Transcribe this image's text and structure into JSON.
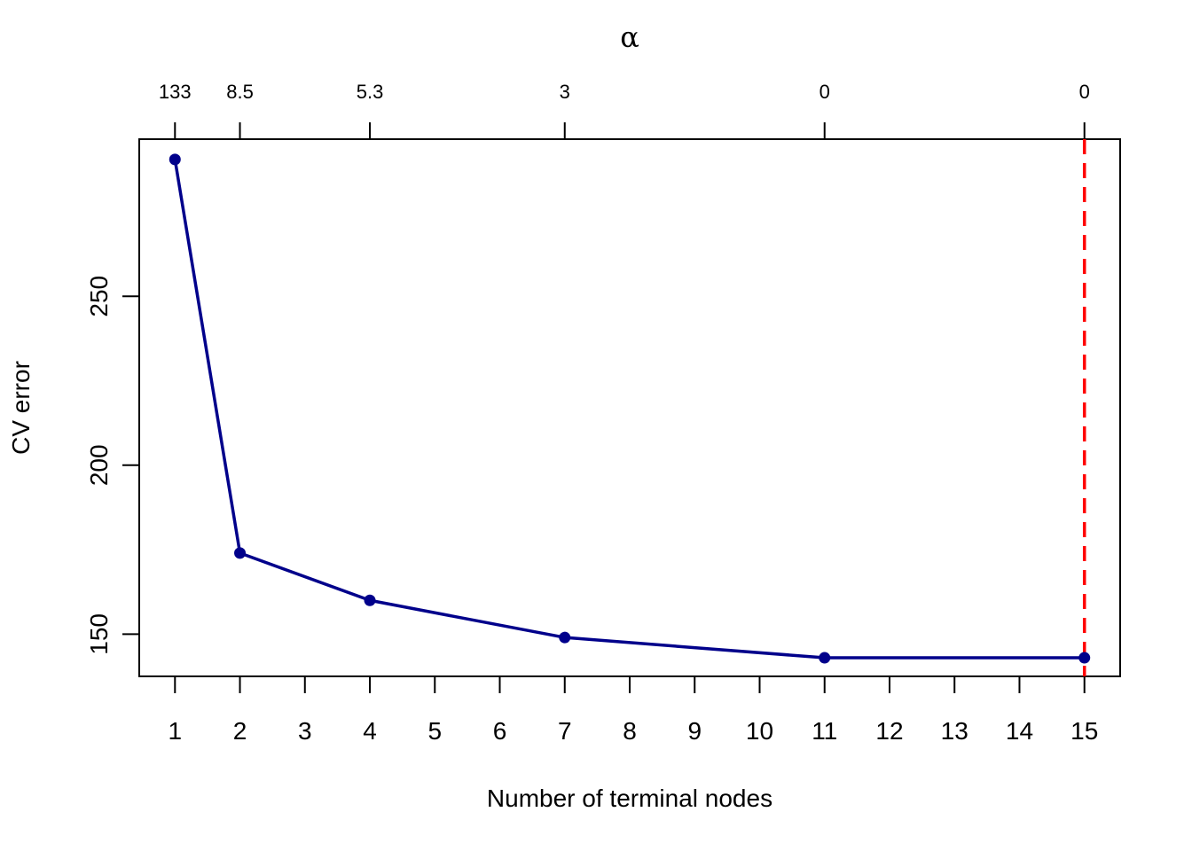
{
  "chart_data": {
    "type": "line",
    "xlabel": "Number of terminal nodes",
    "ylabel": "CV error",
    "top_axis_title": "α",
    "x_ticks": [
      1,
      2,
      3,
      4,
      5,
      6,
      7,
      8,
      9,
      10,
      11,
      12,
      13,
      14,
      15
    ],
    "y_ticks": [
      150,
      200,
      250
    ],
    "xlim": [
      0.45,
      15.55
    ],
    "ylim": [
      137.5,
      296.5
    ],
    "top_ticks": [
      {
        "x": 1,
        "label": "133"
      },
      {
        "x": 2,
        "label": "8.5"
      },
      {
        "x": 4,
        "label": "5.3"
      },
      {
        "x": 7,
        "label": "3"
      },
      {
        "x": 11,
        "label": "0"
      },
      {
        "x": 15,
        "label": "0"
      }
    ],
    "series": [
      {
        "x": [
          1,
          2,
          4,
          7,
          11,
          15
        ],
        "y": [
          290.5,
          174,
          160,
          149,
          143,
          143
        ],
        "color": "#00008b"
      }
    ],
    "reference_line": {
      "x": 15,
      "color": "#ff0000",
      "style": "dashed"
    },
    "grid": false,
    "legend": "none"
  }
}
